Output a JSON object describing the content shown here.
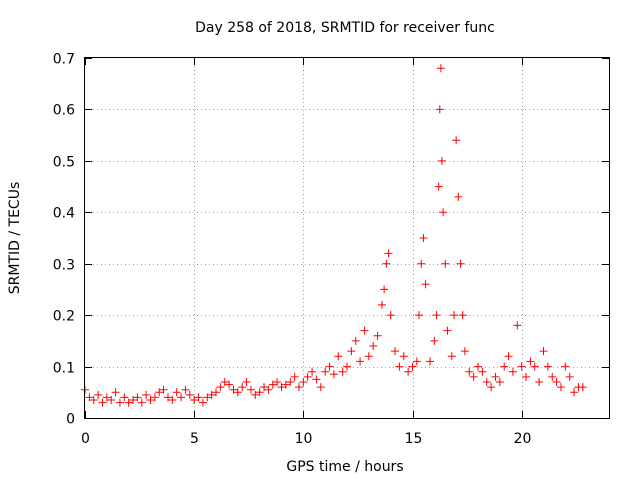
{
  "chart_data": {
    "type": "scatter",
    "title": "Day 258 of 2018, SRMTID for receiver func",
    "xlabel": "GPS time / hours",
    "ylabel": "SRMTID / TECUs",
    "xlim": [
      0,
      24
    ],
    "ylim": [
      0,
      0.7
    ],
    "grid": true,
    "x_ticks": [
      0,
      5,
      10,
      15,
      20
    ],
    "y_ticks": [
      0,
      0.1,
      0.2,
      0.3,
      0.4,
      0.5,
      0.6,
      0.7
    ],
    "x_tick_labels": [
      "0",
      "5",
      "10",
      "15",
      "20"
    ],
    "y_tick_labels": [
      "0",
      "0.1",
      "0.2",
      "0.3",
      "0.4",
      "0.5",
      "0.6",
      "0.7"
    ],
    "marker": "+",
    "marker_color": "#ff0000",
    "series": [
      {
        "name": "SRMTID",
        "x": [
          0.0,
          0.2,
          0.4,
          0.6,
          0.8,
          1.0,
          1.2,
          1.4,
          1.6,
          1.8,
          2.0,
          2.2,
          2.4,
          2.6,
          2.8,
          3.0,
          3.2,
          3.4,
          3.6,
          3.8,
          4.0,
          4.2,
          4.4,
          4.6,
          4.8,
          5.0,
          5.2,
          5.4,
          5.6,
          5.8,
          6.0,
          6.2,
          6.4,
          6.6,
          6.8,
          7.0,
          7.2,
          7.4,
          7.6,
          7.8,
          8.0,
          8.2,
          8.4,
          8.6,
          8.8,
          9.0,
          9.2,
          9.4,
          9.6,
          9.8,
          10.0,
          10.2,
          10.4,
          10.6,
          10.8,
          11.0,
          11.2,
          11.4,
          11.6,
          11.8,
          12.0,
          12.2,
          12.4,
          12.6,
          12.8,
          13.0,
          13.2,
          13.4,
          13.6,
          13.7,
          13.8,
          13.9,
          14.0,
          14.2,
          14.4,
          14.6,
          14.8,
          15.0,
          15.2,
          15.3,
          15.4,
          15.5,
          15.6,
          15.8,
          16.0,
          16.1,
          16.2,
          16.25,
          16.3,
          16.35,
          16.4,
          16.5,
          16.6,
          16.8,
          16.9,
          17.0,
          17.1,
          17.2,
          17.3,
          17.4,
          17.6,
          17.8,
          18.0,
          18.2,
          18.4,
          18.6,
          18.8,
          19.0,
          19.2,
          19.4,
          19.6,
          19.8,
          20.0,
          20.2,
          20.4,
          20.6,
          20.8,
          21.0,
          21.2,
          21.4,
          21.6,
          21.8,
          22.0,
          22.2,
          22.4,
          22.6,
          22.8
        ],
        "values": [
          0.055,
          0.04,
          0.035,
          0.045,
          0.03,
          0.04,
          0.035,
          0.05,
          0.03,
          0.04,
          0.03,
          0.035,
          0.04,
          0.03,
          0.045,
          0.035,
          0.04,
          0.05,
          0.055,
          0.04,
          0.035,
          0.05,
          0.04,
          0.055,
          0.045,
          0.035,
          0.04,
          0.03,
          0.04,
          0.045,
          0.05,
          0.06,
          0.07,
          0.065,
          0.055,
          0.05,
          0.06,
          0.07,
          0.055,
          0.045,
          0.05,
          0.06,
          0.055,
          0.065,
          0.07,
          0.06,
          0.065,
          0.07,
          0.08,
          0.06,
          0.07,
          0.08,
          0.09,
          0.075,
          0.06,
          0.09,
          0.1,
          0.085,
          0.12,
          0.09,
          0.1,
          0.13,
          0.15,
          0.11,
          0.17,
          0.12,
          0.14,
          0.16,
          0.22,
          0.25,
          0.3,
          0.32,
          0.2,
          0.13,
          0.1,
          0.12,
          0.09,
          0.1,
          0.11,
          0.2,
          0.3,
          0.35,
          0.26,
          0.11,
          0.15,
          0.2,
          0.45,
          0.6,
          0.68,
          0.5,
          0.4,
          0.3,
          0.17,
          0.12,
          0.2,
          0.54,
          0.43,
          0.3,
          0.2,
          0.13,
          0.09,
          0.08,
          0.1,
          0.09,
          0.07,
          0.06,
          0.08,
          0.07,
          0.1,
          0.12,
          0.09,
          0.18,
          0.1,
          0.08,
          0.11,
          0.1,
          0.07,
          0.13,
          0.1,
          0.08,
          0.07,
          0.06,
          0.1,
          0.08,
          0.05,
          0.06,
          0.06
        ]
      }
    ]
  }
}
